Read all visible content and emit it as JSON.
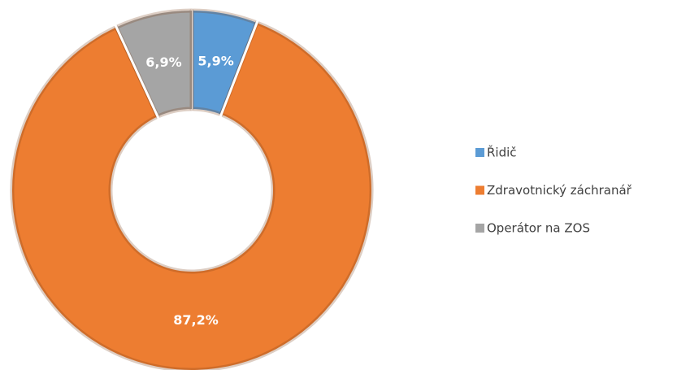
{
  "chart_data": {
    "type": "donut",
    "categories": [
      "Řidič",
      "Zdravotnický záchranář",
      "Operátor na ZOS"
    ],
    "values": [
      5.9,
      87.2,
      6.9
    ],
    "value_labels": [
      "5,9%",
      "87,2%",
      "6,9%"
    ],
    "colors": [
      "#5b9bd5",
      "#ed7d31",
      "#a5a5a5"
    ],
    "legend": "right"
  }
}
